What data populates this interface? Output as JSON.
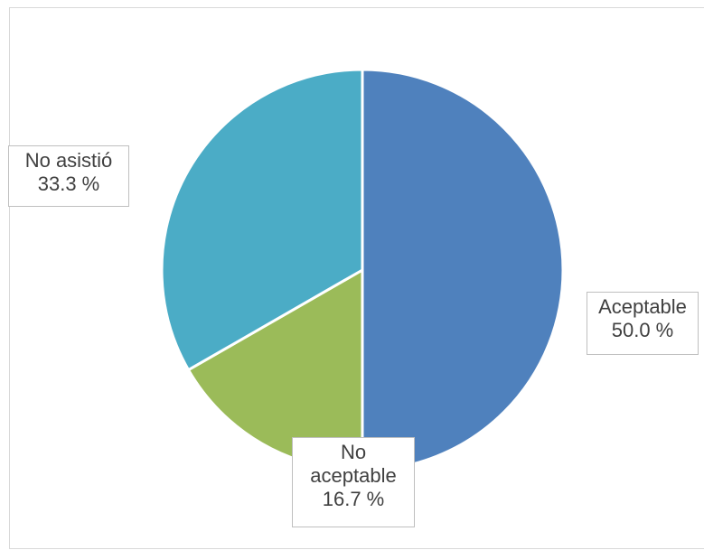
{
  "chart_data": {
    "type": "pie",
    "slices": [
      {
        "label": "Aceptable",
        "value": 50.0,
        "value_label": "50.0 %",
        "color": "#4f81bd"
      },
      {
        "label": "No aceptable",
        "value": 16.7,
        "value_label": "16.7 %",
        "color": "#9bbb59"
      },
      {
        "label": "No asistió",
        "value": 33.3,
        "value_label": "33.3 %",
        "color": "#4bacc6"
      }
    ],
    "data_labels": "callout",
    "legend": "none"
  }
}
